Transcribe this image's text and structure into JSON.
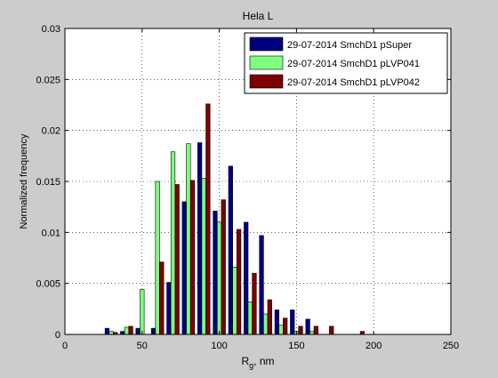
{
  "chart_data": {
    "type": "bar",
    "title": "Hela L",
    "xlabel_main": "R",
    "xlabel_sub": "g",
    "xlabel_rest": ", nm",
    "ylabel": "Normalized frequency",
    "xlim": [
      0,
      250
    ],
    "ylim": [
      0,
      0.03
    ],
    "xticks": [
      0,
      50,
      100,
      150,
      200,
      250
    ],
    "xtick_labels": [
      "0",
      "50",
      "100",
      "150",
      "200",
      "250"
    ],
    "yticks": [
      0,
      0.005,
      0.01,
      0.015,
      0.02,
      0.025,
      0.03
    ],
    "ytick_labels": [
      "0",
      "0.005",
      "0.01",
      "0.015",
      "0.02",
      "0.025",
      "0.03"
    ],
    "grid": true,
    "legend_position": "top-right",
    "bin_width": 10,
    "x": [
      30,
      40,
      50,
      60,
      70,
      80,
      90,
      100,
      110,
      120,
      130,
      140,
      150,
      160,
      170,
      180,
      190,
      200
    ],
    "series": [
      {
        "name": "29-07-2014 SmchD1 pSuper",
        "color": "#00007f",
        "values": [
          0.0006,
          0.0003,
          0.0006,
          0.0006,
          0.0051,
          0.013,
          0.0188,
          0.0121,
          0.0165,
          0.011,
          0.0097,
          0.0024,
          0.0024,
          0.0015,
          0.0,
          0.0,
          0.0,
          0.0
        ]
      },
      {
        "name": "29-07-2014 SmchD1 pLVP041",
        "color": "#7fff7f",
        "values": [
          0.0003,
          0.0007,
          0.0044,
          0.015,
          0.0179,
          0.0187,
          0.0153,
          0.011,
          0.0066,
          0.0032,
          0.002,
          0.0009,
          0.0003,
          0.0003,
          0.0,
          0.0,
          0.0,
          0.0
        ]
      },
      {
        "name": "29-07-2014 SmchD1 pLVP042",
        "color": "#7f0000",
        "values": [
          0.0002,
          0.0008,
          0.0,
          0.0071,
          0.0147,
          0.0151,
          0.0226,
          0.0132,
          0.0103,
          0.006,
          0.0034,
          0.0016,
          0.0008,
          0.0008,
          0.0008,
          0.0,
          0.0003,
          0.0
        ]
      }
    ]
  }
}
